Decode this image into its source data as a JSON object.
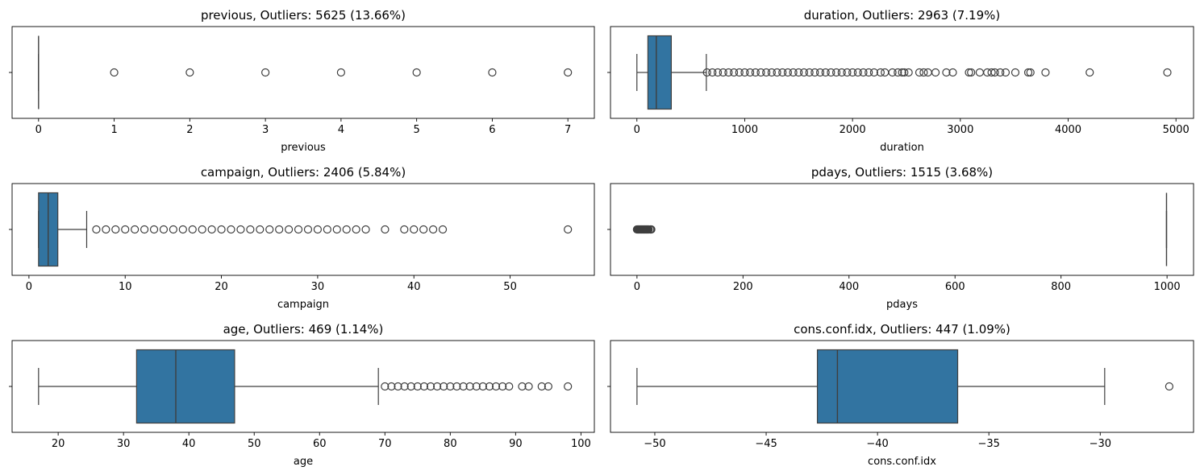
{
  "chart_data": [
    {
      "type": "boxplot",
      "variable": "previous",
      "title": "previous, Outliers: 5625 (13.66%)",
      "xlabel": "previous",
      "xlim": [
        -0.35,
        7.35
      ],
      "xticks": [
        0,
        1,
        2,
        3,
        4,
        5,
        6,
        7
      ],
      "xtick_labels": [
        "0",
        "1",
        "2",
        "3",
        "4",
        "5",
        "6",
        "7"
      ],
      "box": {
        "min": 0,
        "q1": 0,
        "median": 0,
        "q3": 0,
        "max": 0
      },
      "outliers": [
        1,
        2,
        3,
        4,
        5,
        6,
        7
      ]
    },
    {
      "type": "boxplot",
      "variable": "duration",
      "title": "duration, Outliers: 2963 (7.19%)",
      "xlabel": "duration",
      "xlim": [
        -245,
        5163
      ],
      "xticks": [
        0,
        1000,
        2000,
        3000,
        4000,
        5000
      ],
      "xtick_labels": [
        "0",
        "1000",
        "2000",
        "3000",
        "4000",
        "5000"
      ],
      "box": {
        "min": 0,
        "q1": 102,
        "median": 180,
        "q3": 319,
        "max": 644
      },
      "outliers": [
        650,
        700,
        750,
        800,
        850,
        900,
        950,
        1000,
        1050,
        1100,
        1150,
        1200,
        1250,
        1300,
        1350,
        1400,
        1450,
        1500,
        1550,
        1600,
        1650,
        1700,
        1750,
        1800,
        1850,
        1900,
        1950,
        2000,
        2050,
        2100,
        2150,
        2200,
        2260,
        2300,
        2370,
        2420,
        2460,
        2480,
        2520,
        2620,
        2660,
        2700,
        2770,
        2870,
        2930,
        3080,
        3100,
        3180,
        3250,
        3290,
        3320,
        3370,
        3420,
        3510,
        3630,
        3650,
        3790,
        4200,
        4920
      ]
    },
    {
      "type": "boxplot",
      "variable": "campaign",
      "title": "campaign, Outliers: 2406 (5.84%)",
      "xlabel": "campaign",
      "xlim": [
        -1.75,
        58.75
      ],
      "xticks": [
        0,
        10,
        20,
        30,
        40,
        50
      ],
      "xtick_labels": [
        "0",
        "10",
        "20",
        "30",
        "40",
        "50"
      ],
      "box": {
        "min": 1,
        "q1": 1,
        "median": 2,
        "q3": 3,
        "max": 6
      },
      "outliers": [
        7,
        8,
        9,
        10,
        11,
        12,
        13,
        14,
        15,
        16,
        17,
        18,
        19,
        20,
        21,
        22,
        23,
        24,
        25,
        26,
        27,
        28,
        29,
        30,
        31,
        32,
        33,
        34,
        35,
        37,
        39,
        40,
        41,
        42,
        43,
        56
      ]
    },
    {
      "type": "boxplot",
      "variable": "pdays",
      "title": "pdays, Outliers: 1515 (3.68%)",
      "xlabel": "pdays",
      "xlim": [
        -50,
        1050
      ],
      "xticks": [
        0,
        200,
        400,
        600,
        800,
        1000
      ],
      "xtick_labels": [
        "0",
        "200",
        "400",
        "600",
        "800",
        "1000"
      ],
      "box": {
        "min": 999,
        "q1": 999,
        "median": 999,
        "q3": 999,
        "max": 999
      },
      "outliers": [
        0,
        1,
        2,
        3,
        4,
        5,
        6,
        7,
        8,
        9,
        10,
        11,
        12,
        13,
        14,
        15,
        16,
        17,
        18,
        19,
        20,
        21,
        22,
        25,
        26,
        27
      ]
    },
    {
      "type": "boxplot",
      "variable": "age",
      "title": "age, Outliers: 469 (1.14%)",
      "xlabel": "age",
      "xlim": [
        12.95,
        102.05
      ],
      "xticks": [
        20,
        30,
        40,
        50,
        60,
        70,
        80,
        90,
        100
      ],
      "xtick_labels": [
        "20",
        "30",
        "40",
        "50",
        "60",
        "70",
        "80",
        "90",
        "100"
      ],
      "box": {
        "min": 17,
        "q1": 32,
        "median": 38,
        "q3": 47,
        "max": 69
      },
      "outliers": [
        70,
        71,
        72,
        73,
        74,
        75,
        76,
        77,
        78,
        79,
        80,
        81,
        82,
        83,
        84,
        85,
        86,
        87,
        88,
        89,
        91,
        92,
        94,
        95,
        98
      ]
    },
    {
      "type": "boxplot",
      "variable": "cons.conf.idx",
      "title": "cons.conf.idx, Outliers: 447 (1.09%)",
      "xlabel": "cons.conf.idx",
      "xlim": [
        -51.99,
        -25.81
      ],
      "xticks": [
        -50,
        -45,
        -40,
        -35,
        -30
      ],
      "xtick_labels": [
        "−50",
        "−45",
        "−40",
        "−35",
        "−30"
      ],
      "box": {
        "min": -50.8,
        "q1": -42.7,
        "median": -41.8,
        "q3": -36.4,
        "max": -29.8
      },
      "outliers": [
        -26.9
      ]
    }
  ],
  "colors": {
    "box_fill": "#3274a1",
    "line": "#3f3f3f",
    "axes": "#000000"
  }
}
